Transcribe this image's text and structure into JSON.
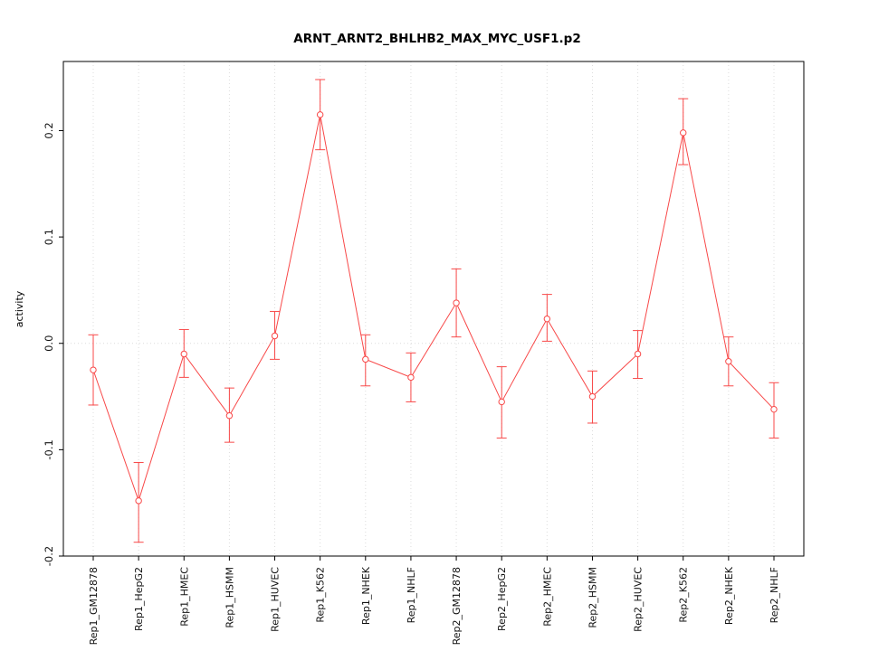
{
  "chart_data": {
    "type": "line",
    "title": "ARNT_ARNT2_BHLHB2_MAX_MYC_USF1.p2",
    "ylabel": "activity",
    "xlabel": "",
    "categories": [
      "Rep1_GM12878",
      "Rep1_HepG2",
      "Rep1_HMEC",
      "Rep1_HSMM",
      "Rep1_HUVEC",
      "Rep1_K562",
      "Rep1_NHEK",
      "Rep1_NHLF",
      "Rep2_GM12878",
      "Rep2_HepG2",
      "Rep2_HMEC",
      "Rep2_HSMM",
      "Rep2_HUVEC",
      "Rep2_K562",
      "Rep2_NHEK",
      "Rep2_NHLF"
    ],
    "values": [
      -0.025,
      -0.148,
      -0.01,
      -0.068,
      0.007,
      0.215,
      -0.015,
      -0.032,
      0.038,
      -0.055,
      0.023,
      -0.05,
      -0.01,
      0.198,
      -0.017,
      -0.062
    ],
    "error_low": [
      -0.058,
      -0.187,
      -0.032,
      -0.093,
      -0.015,
      0.182,
      -0.04,
      -0.055,
      0.006,
      -0.089,
      0.002,
      -0.075,
      -0.033,
      0.168,
      -0.04,
      -0.089
    ],
    "error_high": [
      0.008,
      -0.112,
      0.013,
      -0.042,
      0.03,
      0.248,
      0.008,
      -0.009,
      0.07,
      -0.022,
      0.046,
      -0.026,
      0.012,
      0.23,
      0.006,
      -0.037
    ],
    "ylim": [
      -0.2,
      0.265
    ],
    "yticks": [
      -0.2,
      -0.1,
      0.0,
      0.1,
      0.2
    ],
    "ytick_labels": [
      "-0.2",
      "-0.1",
      "0.0",
      "0.1",
      "0.2"
    ],
    "legend_position": "none",
    "grid": "vertical dotted gridlines at each category plus dotted zero line",
    "series_color": "#f84848",
    "grid_color": "#dcdcdc",
    "axis_color": "#000000",
    "point_style": "open-circle",
    "error_bars": true
  }
}
